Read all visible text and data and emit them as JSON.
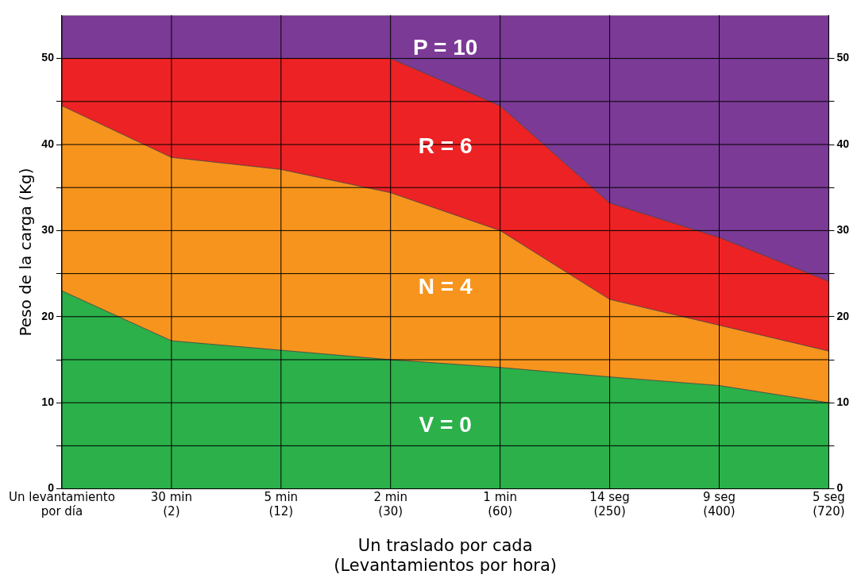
{
  "chart_data": {
    "type": "area",
    "stacked": true,
    "ylabel": "Peso de la carga (Kg)",
    "xlabel": "Un traslado por cada\n(Levantamientos por hora)",
    "categories": [
      "Un levantamiento\npor día",
      "30 min\n(2)",
      "5 min\n(12)",
      "2 min\n(30)",
      "1 min\n(60)",
      "14 seg\n(250)",
      "9 seg\n(400)",
      "5 seg\n(720)"
    ],
    "series": [
      {
        "name": "V = 0",
        "color": "#2bb04a",
        "values": [
          23,
          17.2,
          16.1,
          15,
          14.1,
          13,
          12,
          10
        ]
      },
      {
        "name": "N = 4",
        "color": "#f7941d",
        "values": [
          21.5,
          21.3,
          21,
          19.4,
          15.9,
          9,
          7,
          6
        ]
      },
      {
        "name": "R = 6",
        "color": "#ed2224",
        "values": [
          5.5,
          11.5,
          12.9,
          15.6,
          14.5,
          11.2,
          10.2,
          8.1
        ]
      },
      {
        "name": "P = 10",
        "color": "#7b3a96",
        "values": [
          5,
          5,
          5,
          5,
          10.5,
          21.8,
          25.8,
          30.9
        ]
      }
    ],
    "ylim": [
      0,
      55
    ],
    "yticks": [
      0,
      {
        "value": 5,
        "label": null
      },
      10,
      {
        "value": 15,
        "label": null
      },
      20,
      {
        "value": 25,
        "label": null
      },
      30,
      {
        "value": 35,
        "label": null
      },
      40,
      {
        "value": 45,
        "label": null
      },
      50
    ],
    "y2lim": [
      0,
      55
    ],
    "y2ticks": [
      0,
      {
        "value": 5,
        "label": null
      },
      10,
      {
        "value": 15,
        "label": null
      },
      20,
      {
        "value": 25,
        "label": null
      },
      30,
      {
        "value": 35,
        "label": null
      },
      40,
      {
        "value": 45,
        "label": null
      },
      50
    ],
    "grid": true,
    "legend": false
  }
}
